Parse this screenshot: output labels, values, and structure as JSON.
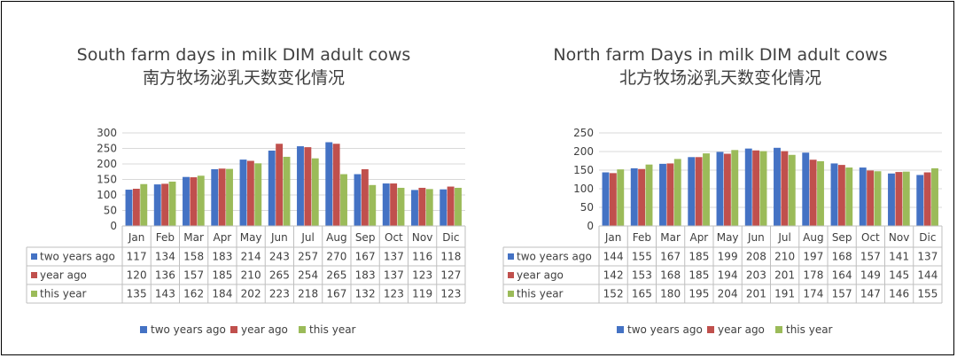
{
  "chart_data": [
    {
      "type": "bar",
      "title": "South farm days in milk DIM adult cows",
      "subtitle": "南方牧场泌乳天数变化情况",
      "categories": [
        "Jan",
        "Feb",
        "Mar",
        "Apr",
        "May",
        "Jun",
        "Jul",
        "Aug",
        "Sep",
        "Oct",
        "Nov",
        "Dic"
      ],
      "series": [
        {
          "name": "two years ago",
          "color": "#4472c4",
          "values": [
            117,
            134,
            158,
            183,
            214,
            243,
            257,
            270,
            167,
            137,
            116,
            118
          ]
        },
        {
          "name": "year ago",
          "color": "#c0504d",
          "values": [
            120,
            136,
            157,
            185,
            210,
            265,
            254,
            265,
            183,
            137,
            123,
            127
          ]
        },
        {
          "name": "this year",
          "color": "#9bbb59",
          "values": [
            135,
            143,
            162,
            184,
            202,
            223,
            218,
            167,
            132,
            123,
            119,
            123
          ]
        }
      ],
      "ylim": [
        0,
        300
      ],
      "yticks": [
        0,
        50,
        100,
        150,
        200,
        250,
        300
      ],
      "grid": true,
      "legend": "bottom",
      "data_table": true
    },
    {
      "type": "bar",
      "title": "North farm Days in milk DIM adult cows",
      "subtitle": "北方牧场泌乳天数变化情况",
      "categories": [
        "Jan",
        "Feb",
        "Mar",
        "Apr",
        "May",
        "Jun",
        "Jul",
        "Aug",
        "Sep",
        "Oct",
        "Nov",
        "Dic"
      ],
      "series": [
        {
          "name": "two years ago",
          "color": "#4472c4",
          "values": [
            144,
            155,
            167,
            185,
            199,
            208,
            210,
            197,
            168,
            157,
            141,
            137
          ]
        },
        {
          "name": "year ago",
          "color": "#c0504d",
          "values": [
            142,
            153,
            168,
            185,
            194,
            203,
            201,
            178,
            164,
            149,
            145,
            144
          ]
        },
        {
          "name": "this year",
          "color": "#9bbb59",
          "values": [
            152,
            165,
            180,
            195,
            204,
            201,
            191,
            174,
            157,
            147,
            146,
            155
          ]
        }
      ],
      "ylim": [
        0,
        250
      ],
      "yticks": [
        0,
        50,
        100,
        150,
        200,
        250
      ],
      "grid": true,
      "legend": "bottom",
      "data_table": true
    }
  ]
}
